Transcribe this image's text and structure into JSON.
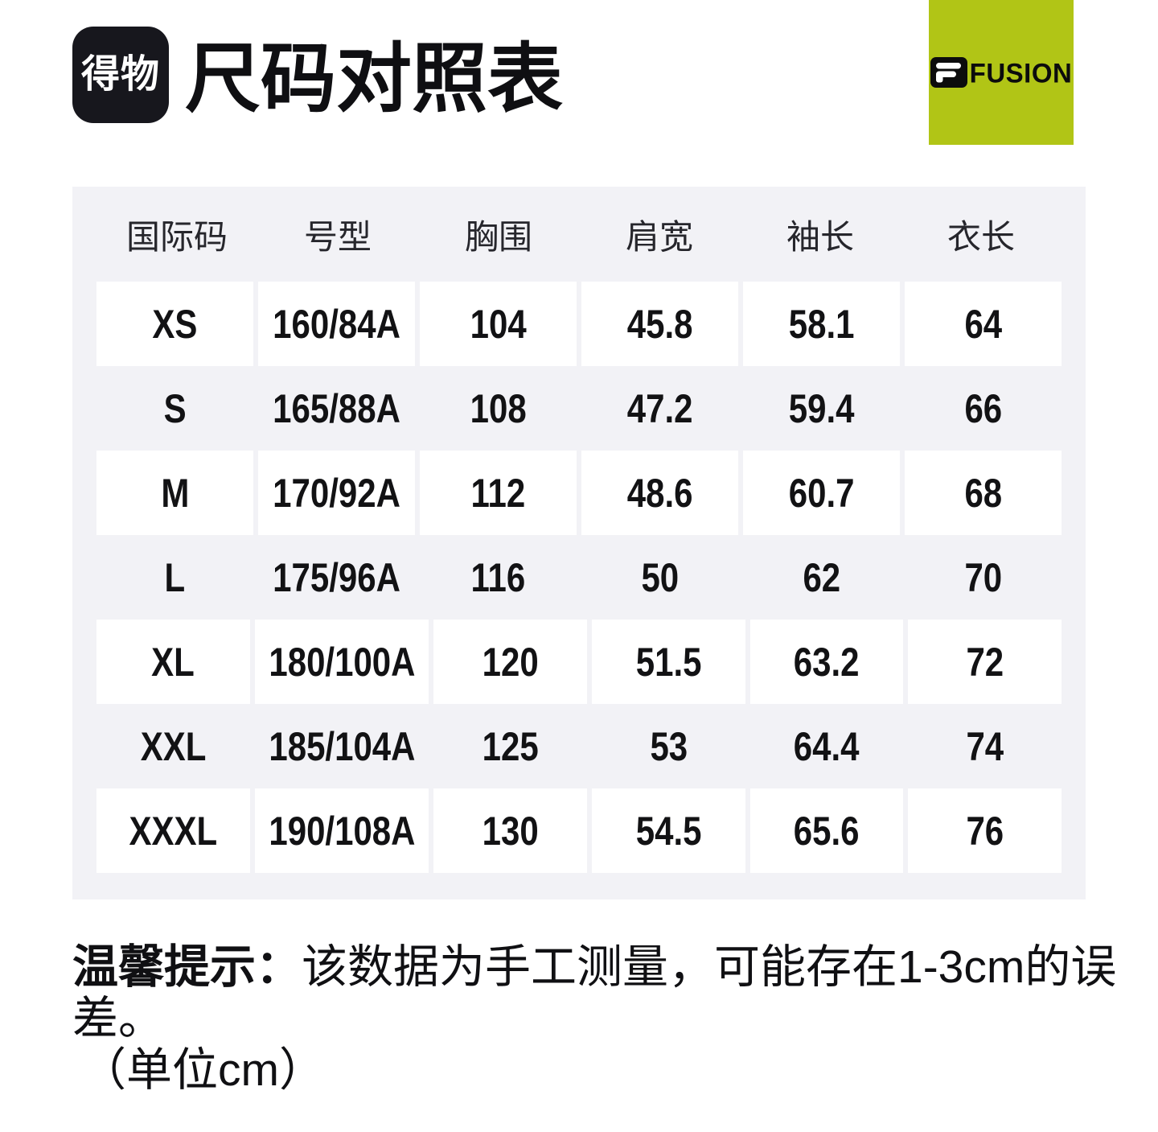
{
  "header": {
    "app_logo_text": "得物",
    "title": "尺码对照表",
    "brand_badge": {
      "icon": "fila-f-box-icon",
      "wordmark": "FUSION",
      "background": "#b1c516"
    }
  },
  "size_table": {
    "columns": [
      "国际码",
      "号型",
      "胸围",
      "肩宽",
      "袖长",
      "衣长"
    ],
    "rows": [
      [
        "XS",
        "160/84A",
        "104",
        "45.8",
        "58.1",
        "64"
      ],
      [
        "S",
        "165/88A",
        "108",
        "47.2",
        "59.4",
        "66"
      ],
      [
        "M",
        "170/92A",
        "112",
        "48.6",
        "60.7",
        "68"
      ],
      [
        "L",
        "175/96A",
        "116",
        "50",
        "62",
        "70"
      ],
      [
        "XL",
        "180/100A",
        "120",
        "51.5",
        "63.2",
        "72"
      ],
      [
        "XXL",
        "185/104A",
        "125",
        "53",
        "64.4",
        "74"
      ],
      [
        "XXXL",
        "190/108A",
        "130",
        "54.5",
        "65.6",
        "76"
      ]
    ]
  },
  "footer_note": {
    "label": "温馨提示：",
    "text": "该数据为手工测量，可能存在1-3cm的误差。",
    "unit": "（单位cm）"
  },
  "colors": {
    "page_background": "#ffffff",
    "table_background": "#f2f2f6",
    "row_cell_background": "#ffffff",
    "text_primary": "#121214",
    "header_text": "#26262c",
    "brand_green": "#b1c516",
    "logo_black": "#17171d"
  }
}
